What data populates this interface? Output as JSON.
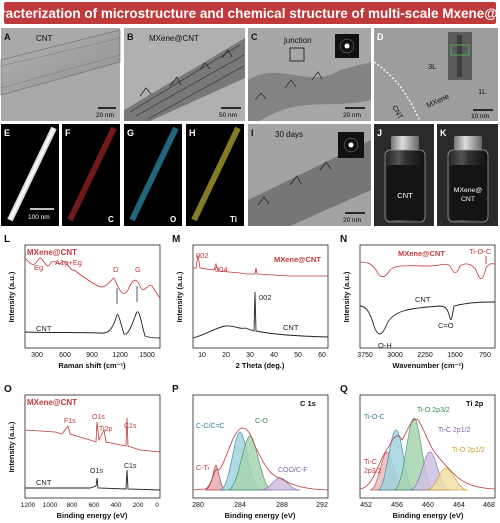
{
  "header": {
    "title": "Characterization of microstructure and chemical structure of multi-scale Mxene@CNT"
  },
  "colors": {
    "accent": "#c0393b",
    "red": "#c0393b",
    "black": "#222222",
    "panel_bg": "#7f7f7f"
  },
  "images": [
    {
      "id": "A",
      "letter": "A",
      "label": "CNT",
      "scale": "20 nm"
    },
    {
      "id": "B",
      "letter": "B",
      "label": "MXene@CNT",
      "scale": "50 nm"
    },
    {
      "id": "C",
      "letter": "C",
      "label": "junction",
      "scale": "20 nm"
    },
    {
      "id": "D",
      "letter": "D",
      "labels": [
        "3L",
        "1L",
        "CNT",
        "MXene"
      ],
      "scale": "10 nm"
    },
    {
      "id": "E",
      "letter": "E",
      "scale": "100 nm"
    },
    {
      "id": "F",
      "letter": "F",
      "element": "C"
    },
    {
      "id": "G",
      "letter": "G",
      "element": "O"
    },
    {
      "id": "H",
      "letter": "H",
      "element": "Ti"
    },
    {
      "id": "I",
      "letter": "I",
      "label": "30 days",
      "scale": "20 nm"
    },
    {
      "id": "J",
      "letter": "J",
      "vial_label": "CNT"
    },
    {
      "id": "K",
      "letter": "K",
      "vial_label_1": "MXene@",
      "vial_label_2": "CNT"
    }
  ],
  "charts": {
    "L": {
      "letter": "L",
      "title": "MXene@CNT",
      "ylabel": "Intensity (a.u.)",
      "xlabel": "Raman shift (cm⁻¹)",
      "xticks": [
        "300",
        "600",
        "900",
        "1200",
        "1500"
      ],
      "peaks": [
        "Eg",
        "A1g+Eg",
        "D",
        "G"
      ],
      "series_bottom": "CNT"
    },
    "M": {
      "letter": "M",
      "series_top": "MXene@CNT",
      "series_bottom": "CNT",
      "ylabel": "Intensity (a.u.)",
      "xlabel": "2 Theta (deg.)",
      "xticks": [
        "10",
        "20",
        "30",
        "40",
        "50",
        "60"
      ],
      "peaks": [
        "002",
        "004",
        "002"
      ]
    },
    "N": {
      "letter": "N",
      "series_top": "MXene@CNT",
      "series_bottom": "CNT",
      "ylabel": "Intensity (a.u.)",
      "xlabel": "Wavenumber (cm⁻¹)",
      "xticks": [
        "3750",
        "3000",
        "2250",
        "1500",
        "750"
      ],
      "peaks": [
        "Ti-O-C",
        "C=O",
        "O-H"
      ]
    },
    "O": {
      "letter": "O",
      "series_top": "MXene@CNT",
      "series_bottom": "CNT",
      "ylabel": "Intensity (a.u.)",
      "xlabel": "Binding energy (eV)",
      "xticks": [
        "1200",
        "1000",
        "800",
        "600",
        "400",
        "200",
        "0"
      ],
      "peaks": [
        "F1s",
        "O1s",
        "Ti2p",
        "C1s",
        "O1s",
        "C1s"
      ]
    },
    "P": {
      "letter": "P",
      "title": "C 1s",
      "xlabel": "Binding energy (eV)",
      "xticks": [
        "280",
        "284",
        "288",
        "292"
      ],
      "components": [
        "C-C/C=C",
        "C-O",
        "C-Ti",
        "COO/C-F"
      ]
    },
    "Q": {
      "letter": "Q",
      "title": "Ti 2p",
      "xlabel": "Binding energy (eV)",
      "xticks": [
        "452",
        "456",
        "460",
        "464",
        "468"
      ],
      "components": [
        "Ti-O-C",
        "Ti-O 2p3/2",
        "Ti-C 2p1/2",
        "Ti-O 2p1/2",
        "Ti-C",
        "2p3/2"
      ]
    }
  }
}
